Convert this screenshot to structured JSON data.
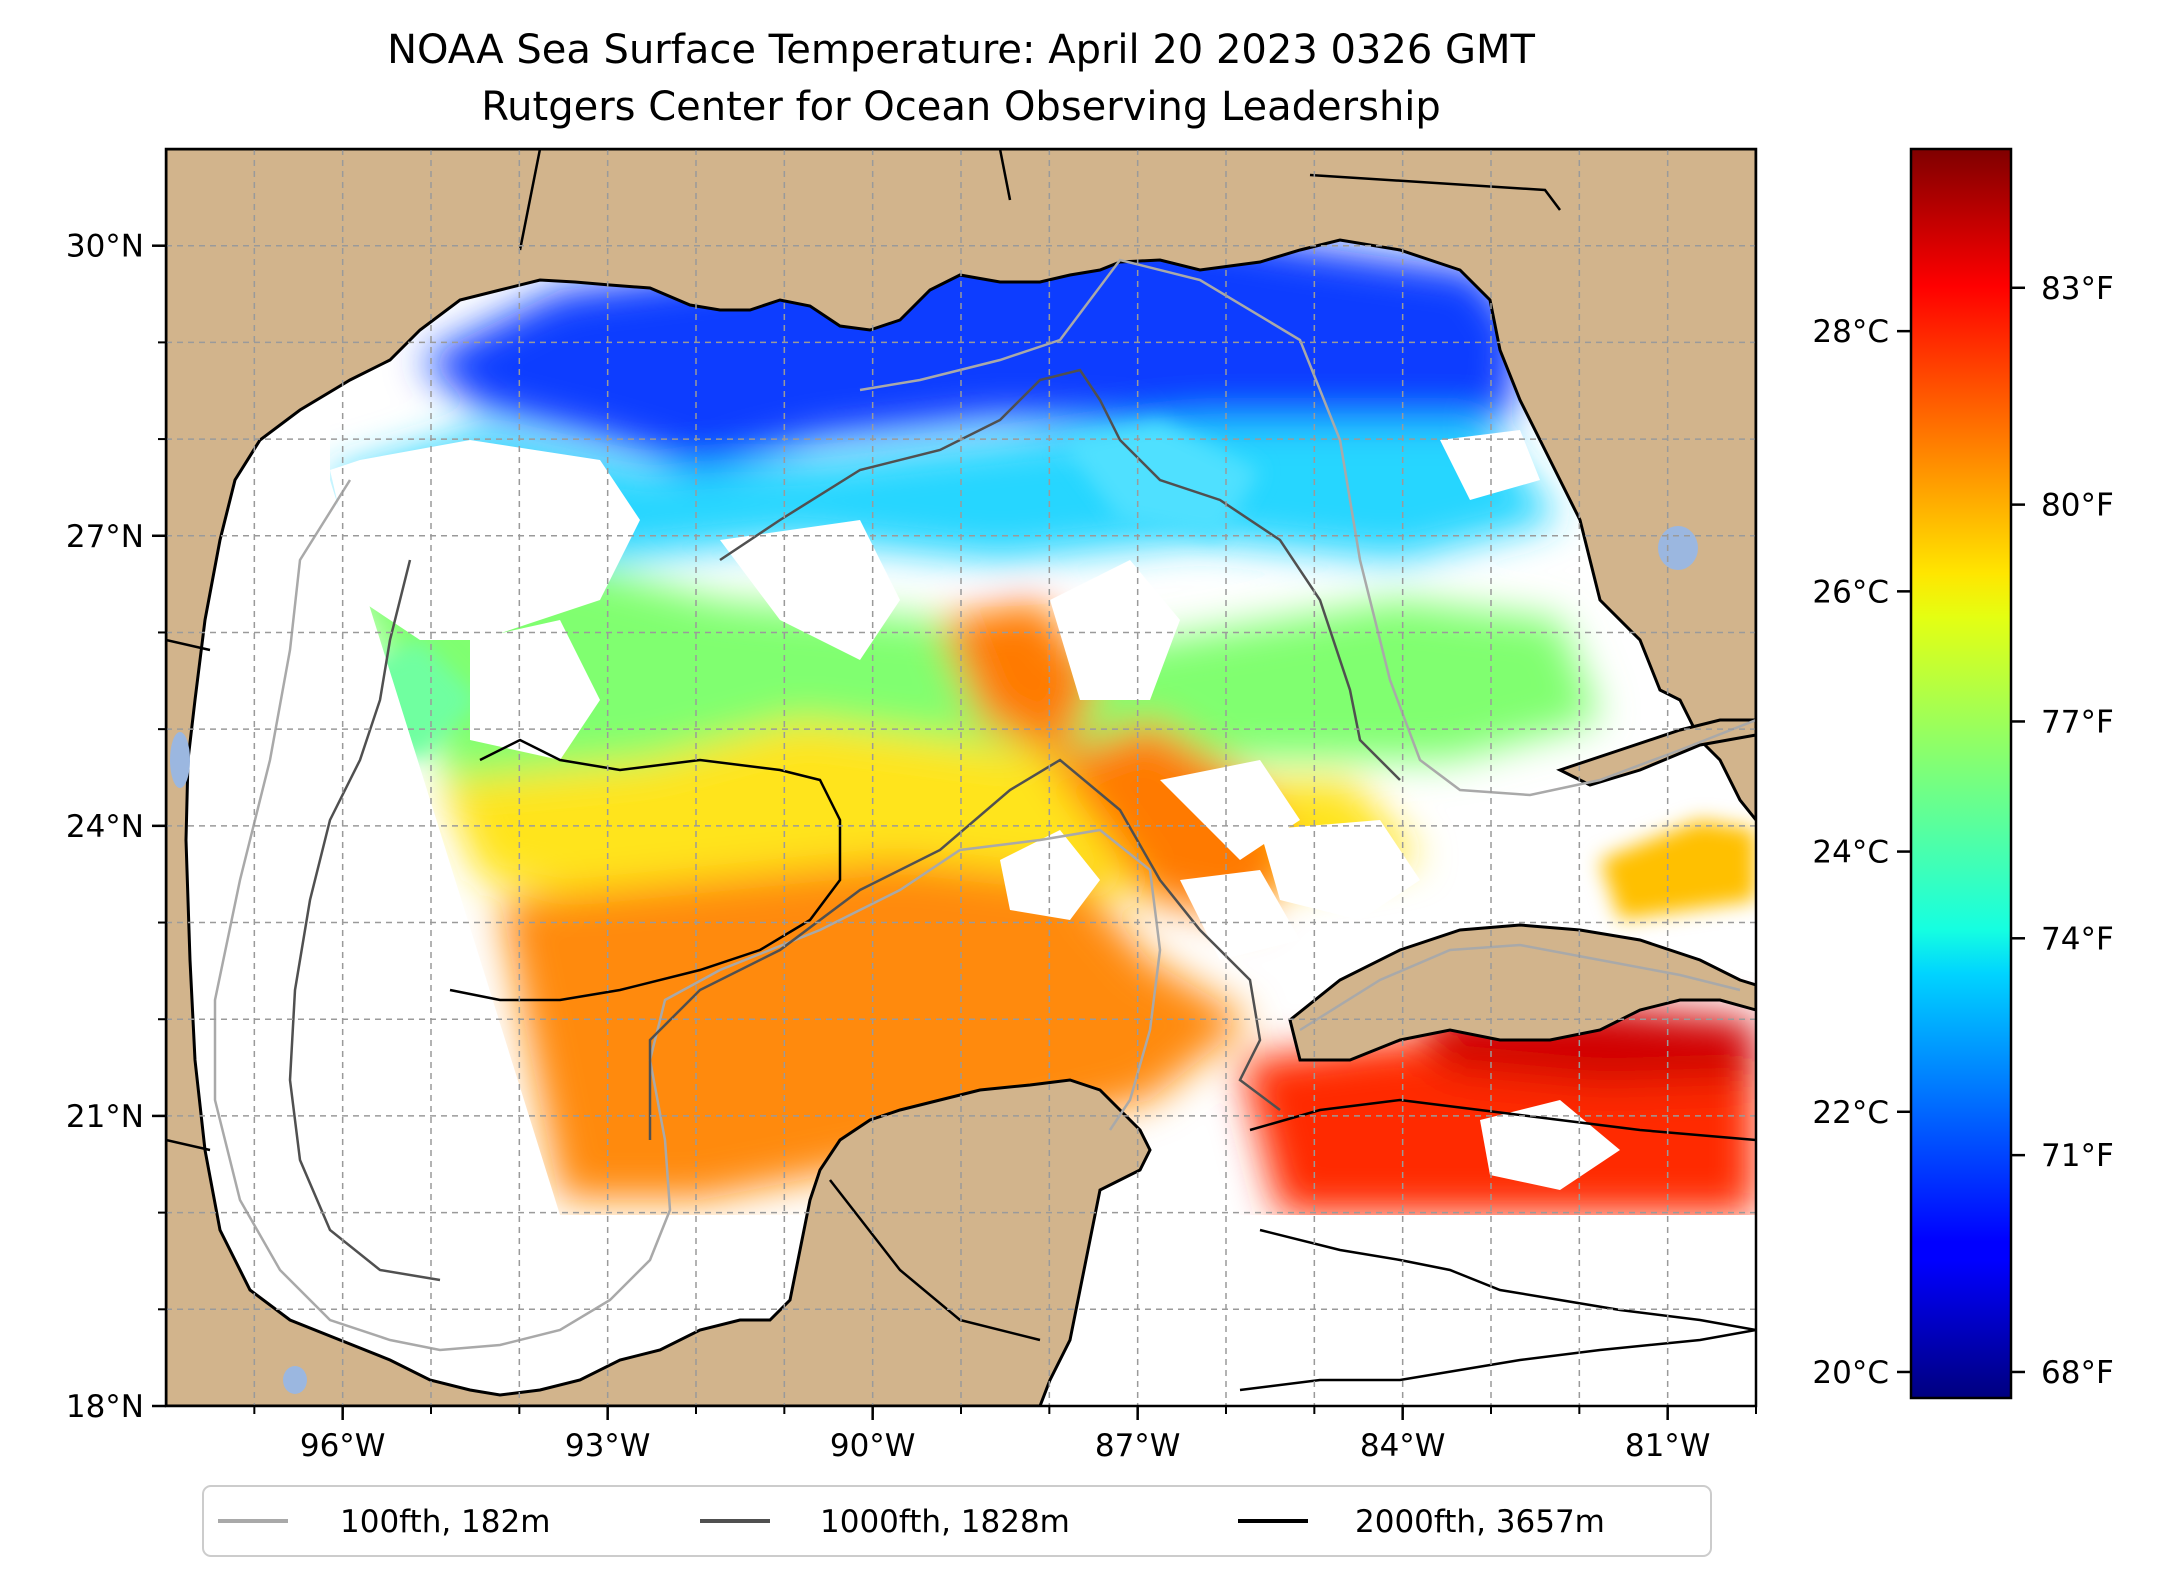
{
  "title": {
    "line1": "NOAA Sea Surface Temperature: April 20 2023 0326 GMT",
    "line2": "Rutgers Center for Ocean Observing Leadership"
  },
  "map": {
    "lon_range": [
      -98,
      -80
    ],
    "lat_range": [
      18,
      31
    ],
    "lat_ticks": [
      {
        "value": 30,
        "label": "30°N"
      },
      {
        "value": 27,
        "label": "27°N"
      },
      {
        "value": 24,
        "label": "24°N"
      },
      {
        "value": 21,
        "label": "21°N"
      },
      {
        "value": 18,
        "label": "18°N"
      }
    ],
    "lon_ticks": [
      {
        "value": -96,
        "label": "96°W"
      },
      {
        "value": -93,
        "label": "93°W"
      },
      {
        "value": -90,
        "label": "90°W"
      },
      {
        "value": -87,
        "label": "87°W"
      },
      {
        "value": -84,
        "label": "84°W"
      },
      {
        "value": -81,
        "label": "81°W"
      }
    ],
    "gridlines": true,
    "land_color": "#d2b48c",
    "nodata_color": "#ffffff"
  },
  "colorbar": {
    "colormap": "jet",
    "range_c": [
      19.8,
      29.4
    ],
    "celsius_ticks": [
      {
        "value": 28,
        "label": "28°C"
      },
      {
        "value": 26,
        "label": "26°C"
      },
      {
        "value": 24,
        "label": "24°C"
      },
      {
        "value": 22,
        "label": "22°C"
      },
      {
        "value": 20,
        "label": "20°C"
      }
    ],
    "fahrenheit_ticks": [
      {
        "value": 83,
        "label": "83°F"
      },
      {
        "value": 80,
        "label": "80°F"
      },
      {
        "value": 77,
        "label": "77°F"
      },
      {
        "value": 74,
        "label": "74°F"
      },
      {
        "value": 71,
        "label": "71°F"
      },
      {
        "value": 68,
        "label": "68°F"
      }
    ]
  },
  "legend": {
    "placement": "bottom",
    "entries": [
      {
        "label": "100fth, 182m",
        "color": "#a9a9a9"
      },
      {
        "label": "1000fth, 1828m",
        "color": "#505050"
      },
      {
        "label": "2000fth, 3657m",
        "color": "#000000"
      }
    ]
  }
}
